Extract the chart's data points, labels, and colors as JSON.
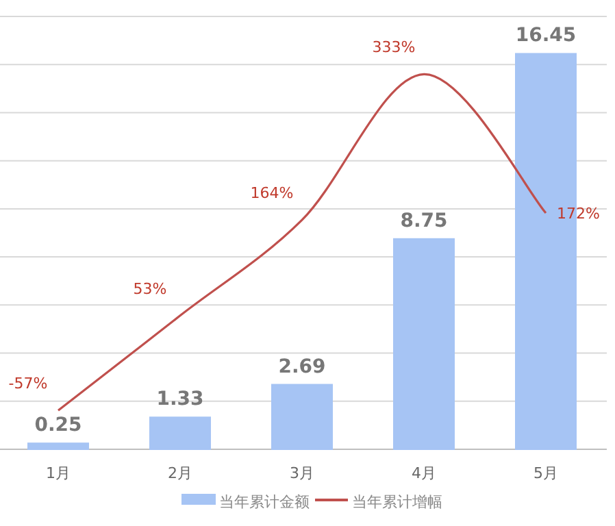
{
  "chart_data": {
    "type": "bar",
    "categories": [
      "1月",
      "2月",
      "3月",
      "4月",
      "5月"
    ],
    "series": [
      {
        "name": "当年累计金额",
        "color": "#a6c4f4",
        "values": [
          0.25,
          1.33,
          2.69,
          8.75,
          16.45
        ]
      },
      {
        "name": "当年累计增幅",
        "type": "line",
        "axis": "y2",
        "color": "#c0504d",
        "values": [
          -57,
          53,
          164,
          333,
          172
        ],
        "value_labels": [
          "-57%",
          "53%",
          "164%",
          "333%",
          "172%"
        ]
      }
    ],
    "ylim": [
      0,
      18
    ],
    "yticks": [
      {
        "value": 0,
        "label": null
      },
      {
        "value": 2,
        "label": null
      },
      {
        "value": 4,
        "label": null
      },
      {
        "value": 6,
        "label": null
      },
      {
        "value": 8,
        "label": null
      },
      {
        "value": 10,
        "label": null
      },
      {
        "value": 12,
        "label": null
      },
      {
        "value": 14,
        "label": null
      },
      {
        "value": 16,
        "label": null
      },
      {
        "value": 18,
        "label": null
      }
    ],
    "y2lim": [
      -102,
      400
    ],
    "tick_labels": "x",
    "grid": "y",
    "legend": "bottom",
    "data_labels": true
  }
}
